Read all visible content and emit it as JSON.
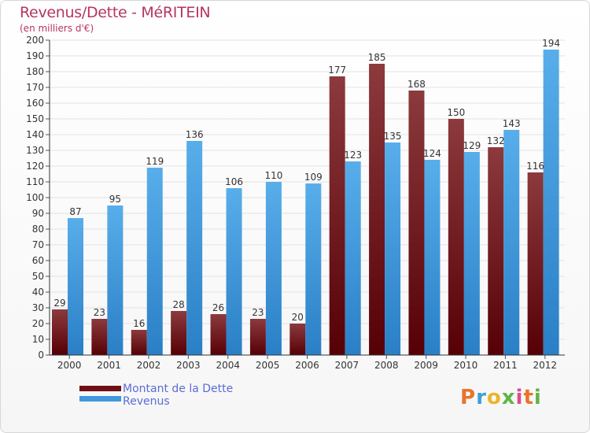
{
  "chart_data": {
    "type": "bar",
    "title": "Revenus/Dette - MéRITEIN",
    "subtitle": "(en milliers d'€)",
    "categories": [
      "2000",
      "2001",
      "2002",
      "2003",
      "2004",
      "2005",
      "2006",
      "2007",
      "2008",
      "2009",
      "2010",
      "2011",
      "2012"
    ],
    "series": [
      {
        "name": "Montant de la Dette",
        "color": "#6e0f14",
        "values": [
          29,
          23,
          16,
          28,
          26,
          23,
          20,
          177,
          185,
          168,
          150,
          132,
          116
        ]
      },
      {
        "name": "Revenus",
        "color": "#3f97dc",
        "values": [
          87,
          95,
          119,
          136,
          106,
          110,
          109,
          123,
          135,
          124,
          129,
          143,
          194
        ]
      }
    ],
    "ylim": [
      0,
      200
    ],
    "yticks": [
      0,
      10,
      20,
      30,
      40,
      50,
      60,
      70,
      80,
      90,
      100,
      110,
      120,
      130,
      140,
      150,
      160,
      170,
      180,
      190,
      200
    ],
    "grid": true,
    "legend_position": "bottom-left"
  },
  "logo": {
    "text": "Proxiti"
  }
}
